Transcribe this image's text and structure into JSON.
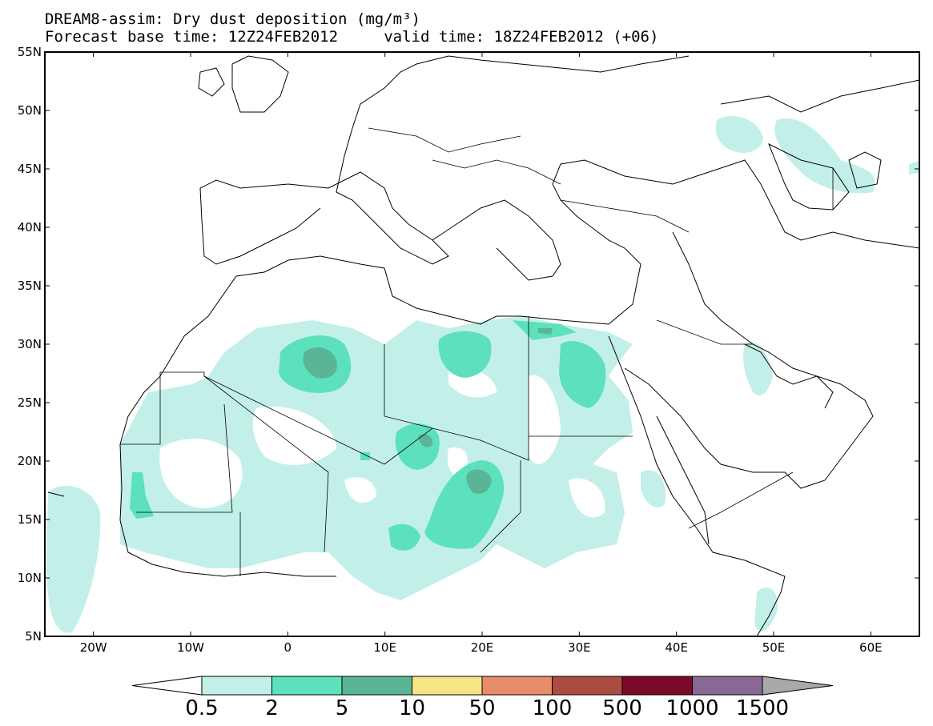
{
  "title": {
    "line1": "DREAM8-assim: Dry dust deposition (mg/m³)",
    "line2": "Forecast base time: 12Z24FEB2012     valid time: 18Z24FEB2012 (+06)"
  },
  "map": {
    "lon_range": [
      -25,
      65
    ],
    "lat_range": [
      5,
      55
    ],
    "lat_ticks": [
      "55N",
      "50N",
      "45N",
      "40N",
      "35N",
      "30N",
      "25N",
      "20N",
      "15N",
      "10N",
      "5N"
    ],
    "lon_ticks": [
      "20W",
      "10W",
      "0",
      "10E",
      "20E",
      "30E",
      "40E",
      "50E",
      "60E"
    ]
  },
  "colorbar": {
    "levels": [
      "0.5",
      "2",
      "5",
      "10",
      "50",
      "100",
      "500",
      "1000",
      "1500"
    ],
    "colors": [
      "#c2f0e8",
      "#5ce1bc",
      "#5ab596",
      "#f4e682",
      "#e88c6a",
      "#ac4b40",
      "#7a0b2a",
      "#8a6896",
      "#a9a9a9"
    ],
    "under_color": "#ffffff"
  }
}
